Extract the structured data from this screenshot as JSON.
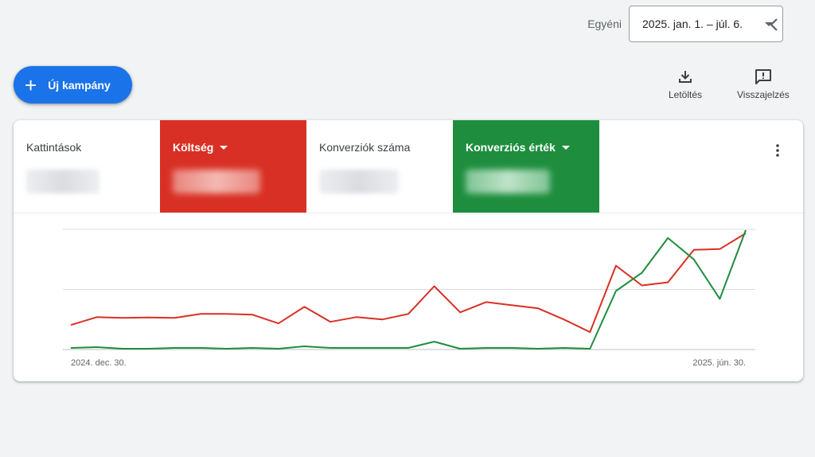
{
  "header": {
    "date_label": "Egyéni",
    "date_range": "2025. jan. 1. – júl. 6."
  },
  "toolbar": {
    "new_campaign": "Új kampány",
    "download": "Letöltés",
    "feedback": "Visszajelzés"
  },
  "metrics": [
    {
      "name": "Kattintások",
      "active": false,
      "color": "#ffffff"
    },
    {
      "name": "Költség",
      "active": true,
      "color": "#d93025"
    },
    {
      "name": "Konverziók száma",
      "active": false,
      "color": "#ffffff"
    },
    {
      "name": "Konverziós érték",
      "active": true,
      "color": "#1e8e3e"
    }
  ],
  "chart_data": {
    "type": "line",
    "x_start_label": "2024. dec. 30.",
    "x_end_label": "2025. jún. 30.",
    "series": [
      {
        "color": "#d93025",
        "values": [
          31,
          41,
          40,
          40.5,
          40,
          45,
          45,
          44,
          33,
          54,
          35,
          41,
          38,
          45,
          80,
          47,
          60,
          56,
          52,
          38,
          22,
          106,
          81,
          85,
          126,
          127,
          147
        ]
      },
      {
        "color": "#1e8e3e",
        "values": [
          2,
          3,
          1,
          1,
          2,
          2,
          1,
          2,
          1,
          4,
          2,
          2,
          2,
          2,
          10,
          1,
          2,
          2,
          1,
          2,
          1,
          74,
          97,
          141,
          114,
          64,
          151
        ]
      }
    ],
    "ylim": [
      0,
      152
    ],
    "grid": true
  }
}
